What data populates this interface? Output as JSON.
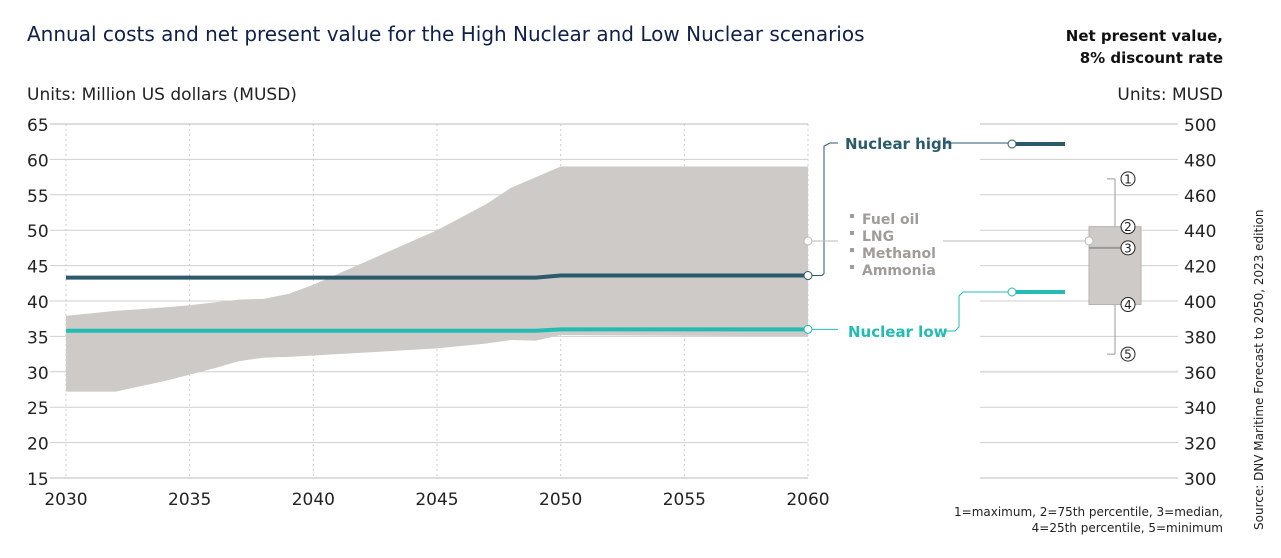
{
  "chart_data": [
    {
      "type": "area",
      "title": "Annual costs and net present value for the High Nuclear and Low Nuclear scenarios",
      "units_label": "Units: Million US dollars (MUSD)",
      "xlim": [
        2030,
        2060
      ],
      "ylim": [
        15,
        65
      ],
      "x_ticks": [
        2030,
        2035,
        2040,
        2045,
        2050,
        2055,
        2060
      ],
      "y_ticks": [
        15,
        20,
        25,
        30,
        35,
        40,
        45,
        50,
        55,
        60,
        65
      ],
      "grid": true,
      "band": {
        "name": "Fuel oil, LNG, Methanol, Ammonia",
        "color": "#cdcac7",
        "x": [
          2030,
          2032,
          2034,
          2035,
          2036,
          2037,
          2038,
          2039,
          2040,
          2045,
          2047,
          2048,
          2049,
          2050,
          2060
        ],
        "upper": [
          37.9,
          38.6,
          39.1,
          39.4,
          39.8,
          40.2,
          40.3,
          41.0,
          42.3,
          50.0,
          53.7,
          56.0,
          57.5,
          59.0,
          59.0
        ],
        "lower": [
          27.2,
          27.2,
          28.7,
          29.6,
          30.5,
          31.5,
          32.0,
          32.1,
          32.3,
          33.3,
          34.0,
          34.5,
          34.4,
          35.2,
          35.0
        ]
      },
      "series": [
        {
          "name": "Nuclear high",
          "color": "#2a5a6c",
          "x": [
            2030,
            2049,
            2050,
            2060
          ],
          "values": [
            43.3,
            43.3,
            43.6,
            43.6
          ]
        },
        {
          "name": "Nuclear low",
          "color": "#22bcb3",
          "x": [
            2030,
            2049,
            2050,
            2060
          ],
          "values": [
            35.8,
            35.8,
            36.0,
            36.0
          ]
        }
      ],
      "legend": {
        "nuclear_high": "Nuclear high",
        "nuclear_low": "Nuclear low",
        "fossil_items": [
          "Fuel oil",
          "LNG",
          "Methanol",
          "Ammonia"
        ]
      }
    },
    {
      "type": "box",
      "title": "Net present value, 8% discount rate",
      "title_line1": "Net present value,",
      "title_line2": "8% discount rate",
      "units_label": "Units: MUSD",
      "ylim": [
        300,
        500
      ],
      "y_ticks": [
        300,
        320,
        340,
        360,
        380,
        400,
        420,
        440,
        460,
        480,
        500
      ],
      "nuclear_high": 483,
      "nuclear_low": 406,
      "fossil_marker": 434,
      "box": {
        "max": 469,
        "q3": 442,
        "median": 430,
        "q1": 398,
        "min": 370
      },
      "box_labels": [
        "1",
        "2",
        "3",
        "4",
        "5"
      ],
      "footnote_line1": "1=maximum, 2=75th percentile, 3=median,",
      "footnote_line2": "4=25th percentile, 5=minimum"
    }
  ],
  "source": "Source: DNV Maritime Forecast to 2050, 2023 edition"
}
